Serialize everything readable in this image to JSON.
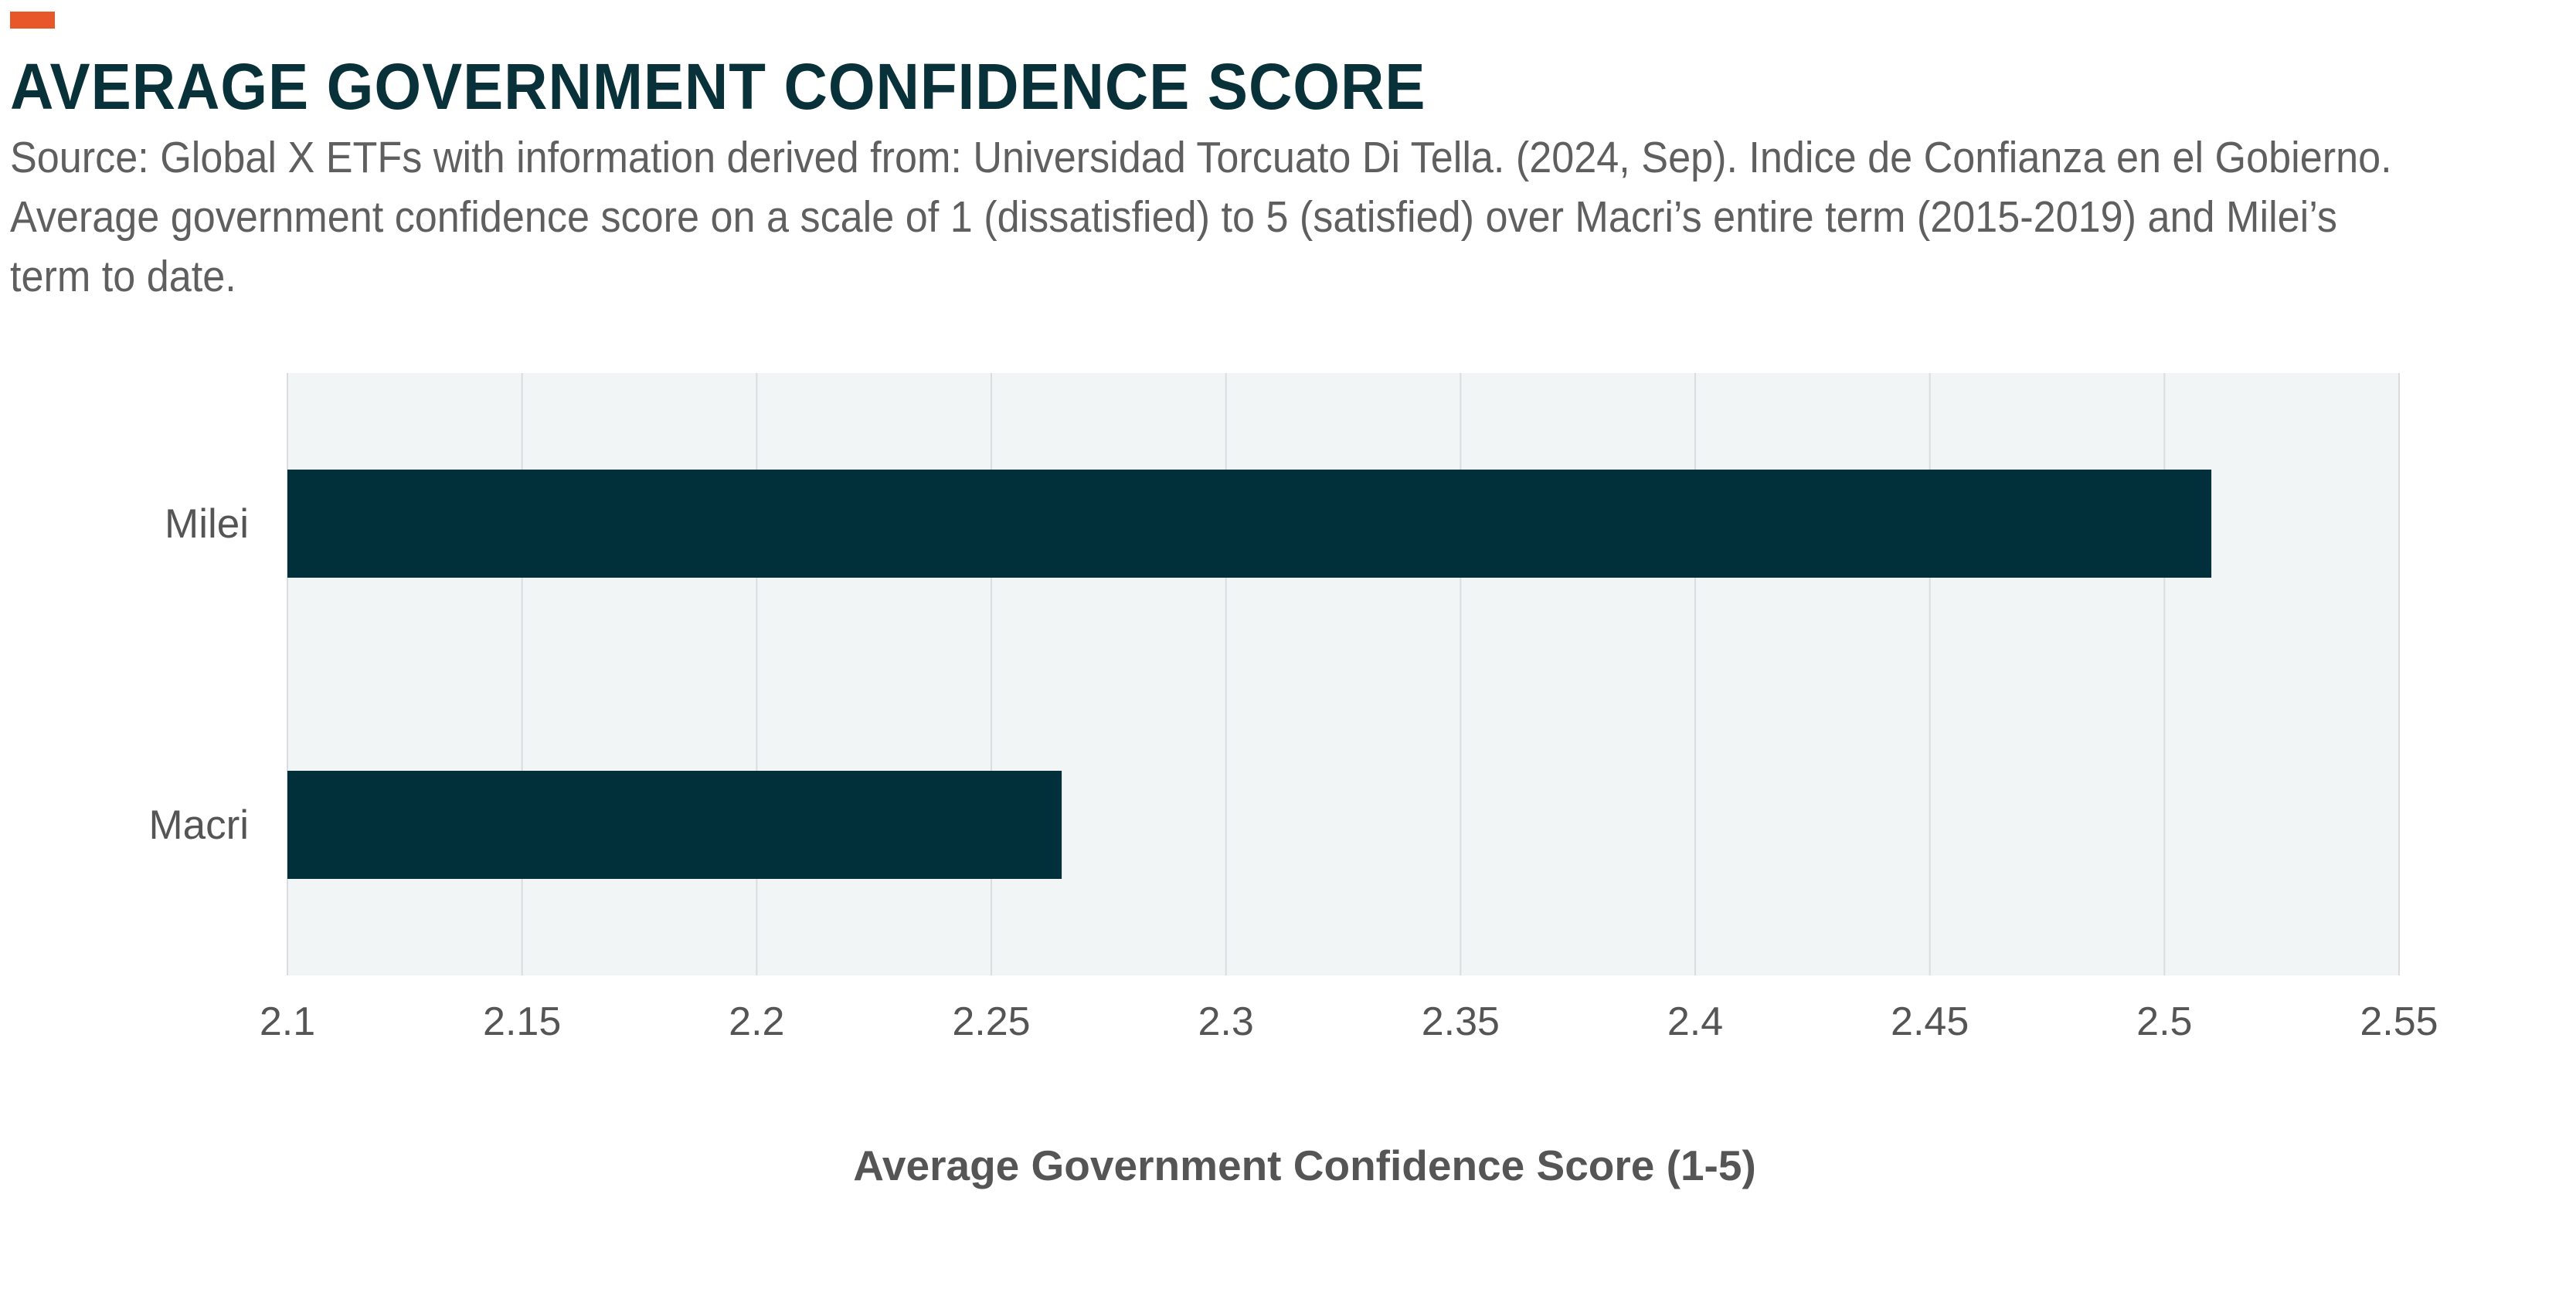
{
  "header": {
    "title": "AVERAGE GOVERNMENT CONFIDENCE SCORE",
    "subtitle": "Source: Global X ETFs with information derived from: Universidad Torcuato Di Tella. (2024, Sep). Indice de Confianza en el Gobierno. Average government confidence score on a scale of 1 (dissatisfied) to 5 (satisfied) over Macri’s entire term (2015-2019) and Milei’s term to date."
  },
  "colors": {
    "accent": "#E8572A",
    "bar": "#01303A",
    "plot_background": "#F2F5F6",
    "gridline": "#D9DDDF",
    "title": "#08313A"
  },
  "chart_data": {
    "type": "bar",
    "orientation": "horizontal",
    "categories": [
      "Milei",
      "Macri"
    ],
    "values": [
      2.51,
      2.265
    ],
    "xlabel": "Average Government Confidence Score (1-5)",
    "xlim": [
      2.1,
      2.55
    ],
    "xticks": [
      "2.1",
      "2.15",
      "2.2",
      "2.25",
      "2.3",
      "2.35",
      "2.4",
      "2.45",
      "2.5",
      "2.55"
    ],
    "grid": true,
    "legend": "none"
  }
}
